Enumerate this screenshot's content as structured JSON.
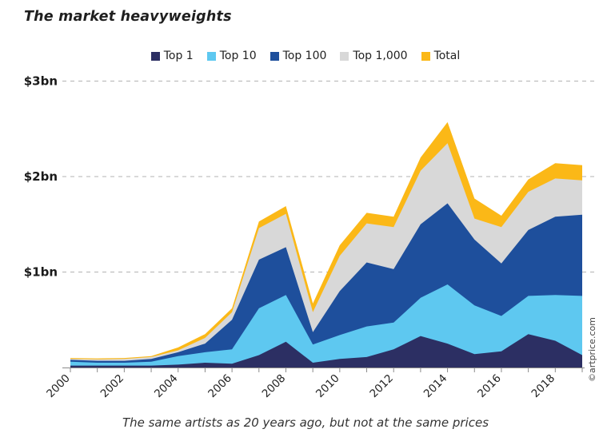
{
  "title": "The market heavyweights",
  "caption": "The same artists as 20 years ago, but not at the same prices",
  "copyright": "©artprice.com",
  "chart_data": {
    "type": "area",
    "title": "The market heavyweights",
    "caption": "The same artists as 20 years ago, but not at the same prices",
    "unit": "$bn",
    "stacking": "cumulative-overlay (each series drawn from 0 up to its value; Total outermost)",
    "legend_position": "top",
    "grid": "dashed horizontal gridlines at $1bn, $2bn, $3bn",
    "x": [
      2000,
      2001,
      2002,
      2003,
      2004,
      2005,
      2006,
      2007,
      2008,
      2009,
      2010,
      2011,
      2012,
      2013,
      2014,
      2015,
      2016,
      2017,
      2018,
      2019
    ],
    "x_tick_label_years": [
      2000,
      2002,
      2004,
      2006,
      2008,
      2010,
      2012,
      2014,
      2016,
      2018
    ],
    "y_axis": {
      "range_bn": [
        0,
        3.05
      ],
      "ticks": [
        {
          "label": "$1bn",
          "value": 1
        },
        {
          "label": "$2bn",
          "value": 2
        },
        {
          "label": "$3bn",
          "value": 3
        }
      ]
    },
    "series": [
      {
        "name": "Top 1",
        "color": "#2c2f63",
        "values": [
          0.02,
          0.02,
          0.02,
          0.02,
          0.03,
          0.05,
          0.04,
          0.13,
          0.27,
          0.05,
          0.09,
          0.11,
          0.19,
          0.33,
          0.25,
          0.14,
          0.17,
          0.35,
          0.28,
          0.13
        ]
      },
      {
        "name": "Top 10",
        "color": "#5ec8f0",
        "values": [
          0.06,
          0.05,
          0.05,
          0.06,
          0.12,
          0.16,
          0.19,
          0.62,
          0.76,
          0.24,
          0.34,
          0.43,
          0.47,
          0.73,
          0.87,
          0.65,
          0.54,
          0.75,
          0.76,
          0.75
        ]
      },
      {
        "name": "Top 100",
        "color": "#1e4f9c",
        "values": [
          0.08,
          0.07,
          0.07,
          0.09,
          0.16,
          0.25,
          0.5,
          1.13,
          1.26,
          0.37,
          0.8,
          1.1,
          1.03,
          1.5,
          1.72,
          1.34,
          1.09,
          1.44,
          1.58,
          1.6
        ]
      },
      {
        "name": "Top 1,000",
        "color": "#d8d8d8",
        "values": [
          0.09,
          0.085,
          0.09,
          0.11,
          0.18,
          0.31,
          0.58,
          1.46,
          1.61,
          0.58,
          1.17,
          1.51,
          1.47,
          2.06,
          2.35,
          1.56,
          1.47,
          1.84,
          1.98,
          1.96
        ]
      },
      {
        "name": "Total",
        "color": "#fbb817",
        "values": [
          0.1,
          0.095,
          0.1,
          0.12,
          0.21,
          0.35,
          0.62,
          1.53,
          1.69,
          0.67,
          1.28,
          1.62,
          1.58,
          2.2,
          2.57,
          1.77,
          1.59,
          1.97,
          2.14,
          2.12
        ]
      }
    ]
  }
}
